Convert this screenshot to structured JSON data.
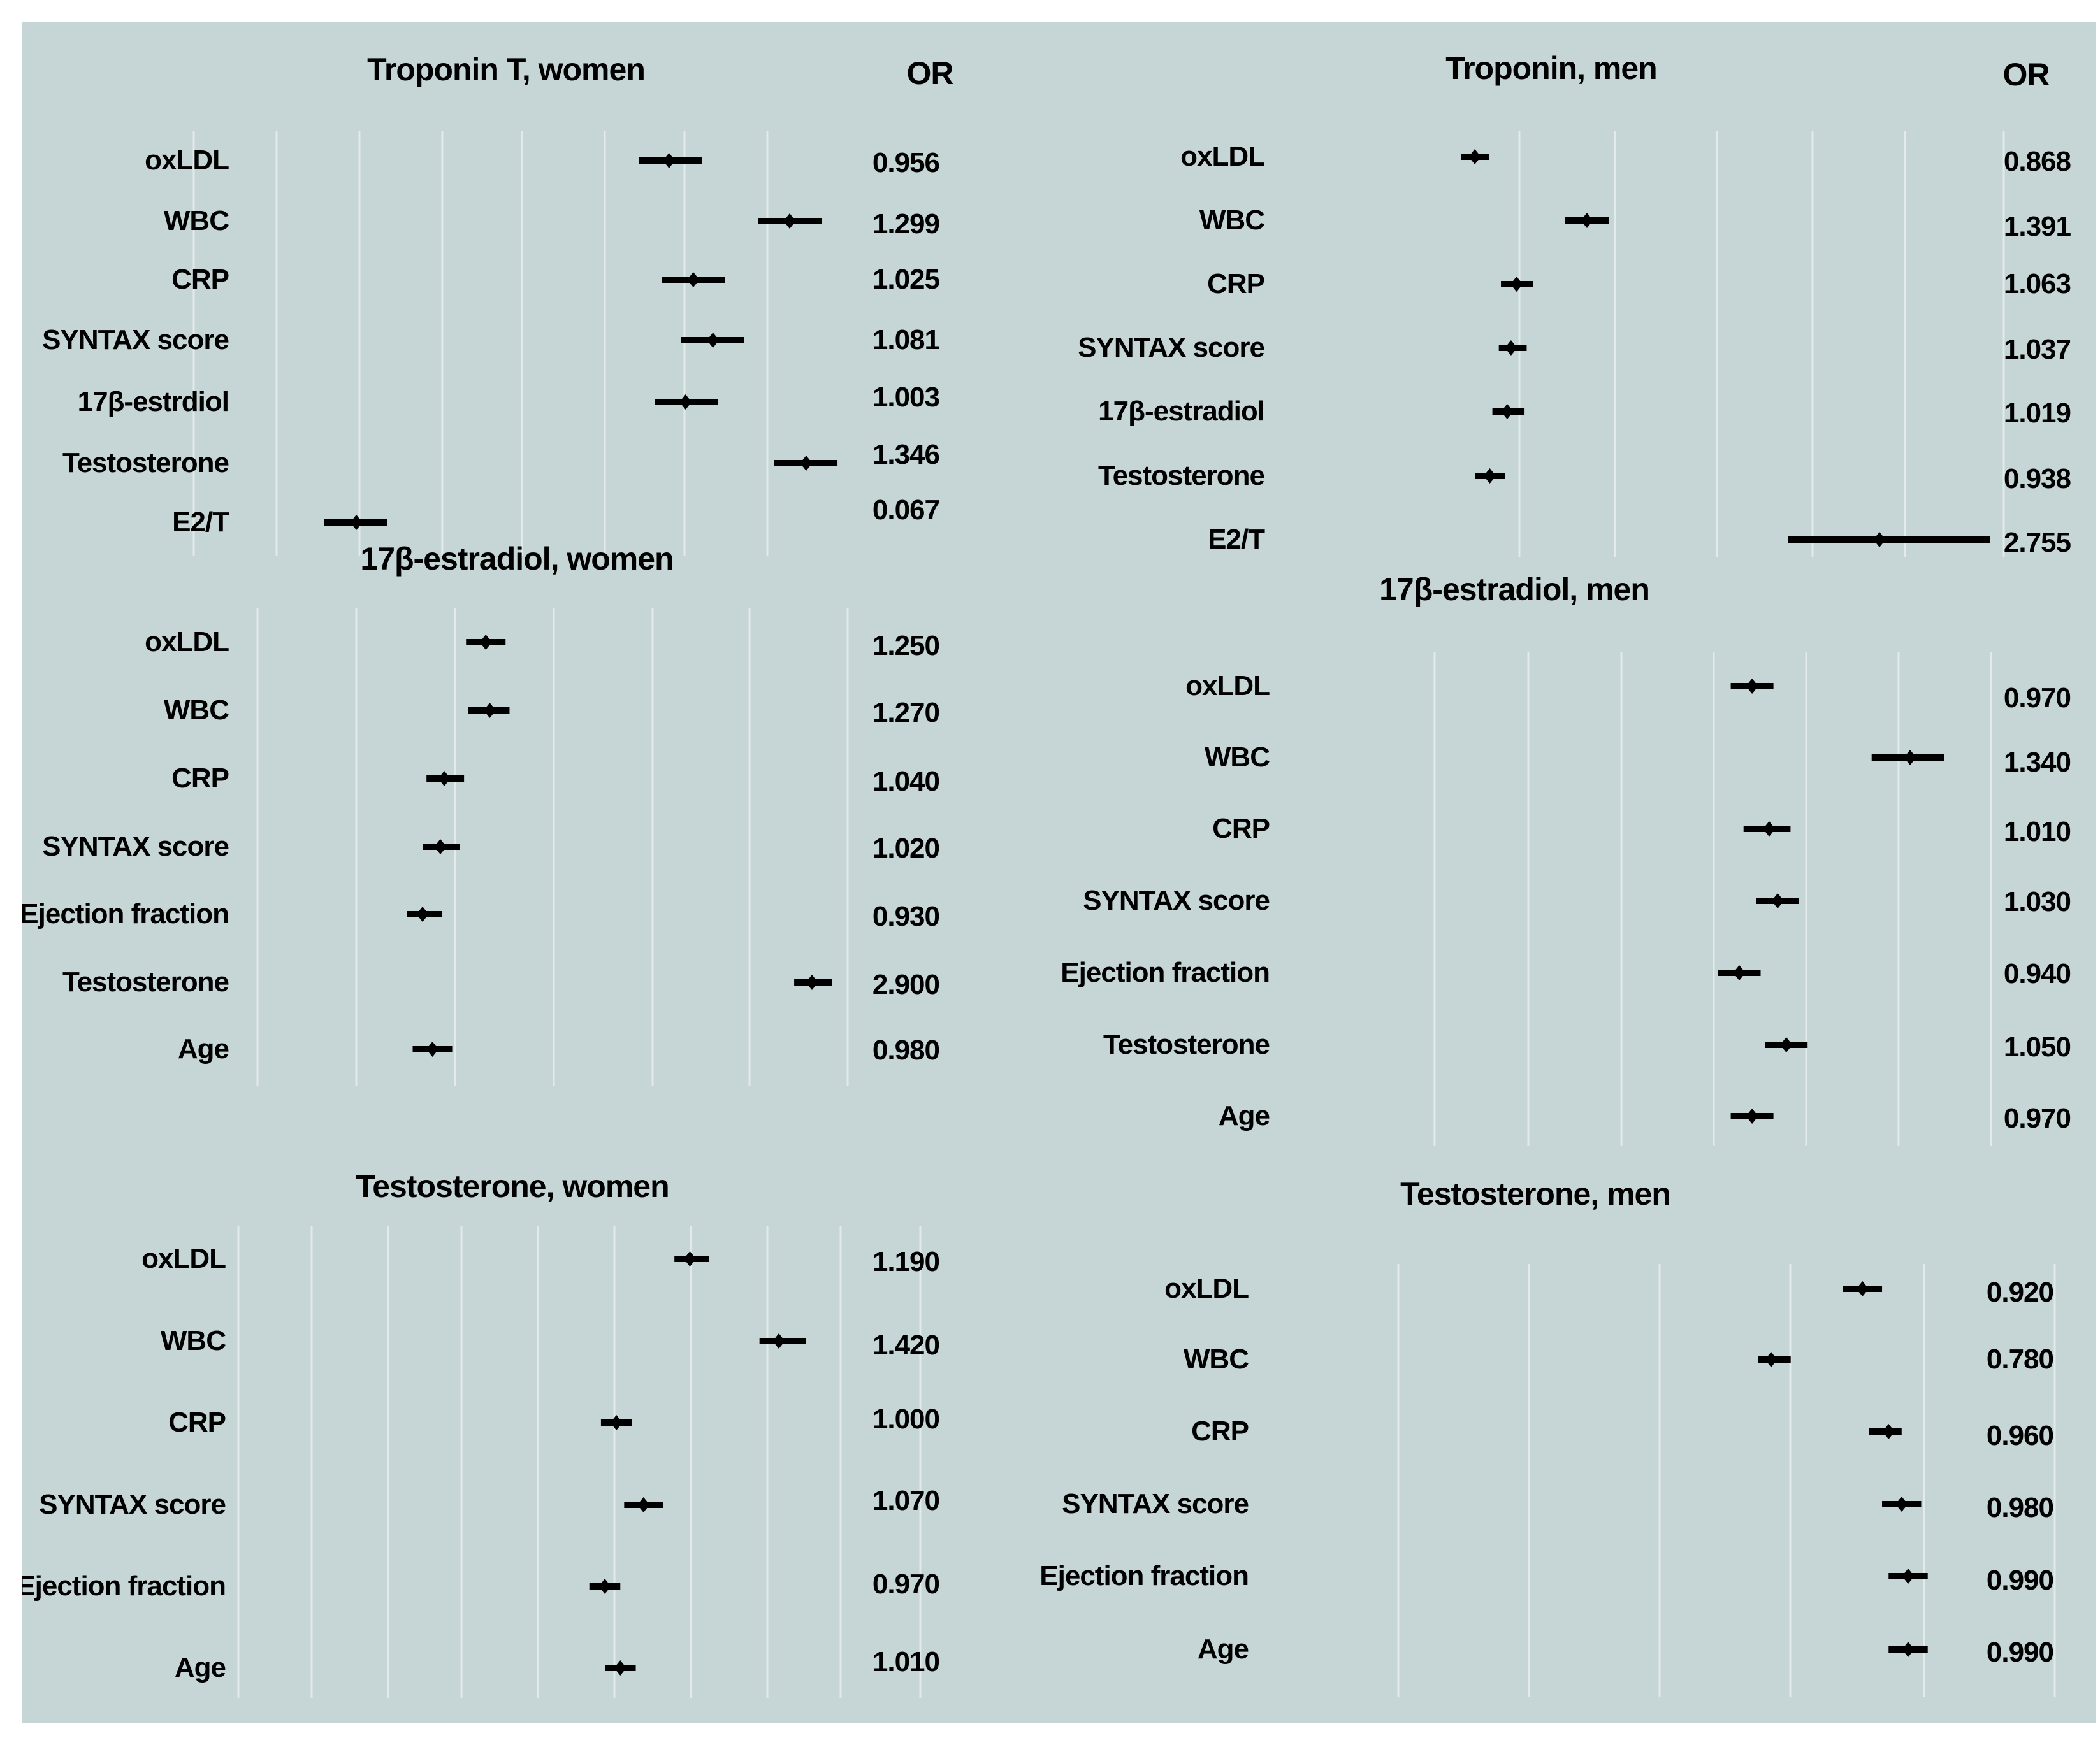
{
  "chart_data": [
    {
      "type": "forest",
      "title": "Troponin T, women",
      "column_header": "OR",
      "rows": [
        {
          "label": "oxLDL",
          "or": 0.956,
          "or_text": "0.956",
          "ci": [
            0.87,
            1.05
          ]
        },
        {
          "label": "WBC",
          "or": 1.299,
          "or_text": "1.299",
          "ci": [
            1.21,
            1.39
          ]
        },
        {
          "label": "CRP",
          "or": 1.025,
          "or_text": "1.025",
          "ci": [
            0.935,
            1.115
          ]
        },
        {
          "label": "SYNTAX score",
          "or": 1.081,
          "or_text": "1.081",
          "ci": [
            0.99,
            1.17
          ]
        },
        {
          "label": "17β-estrdiol",
          "or": 1.003,
          "or_text": "1.003",
          "ci": [
            0.915,
            1.095
          ]
        },
        {
          "label": "Testosterone",
          "or": 1.346,
          "or_text": "1.346",
          "ci": [
            1.255,
            1.435
          ]
        },
        {
          "label": "E2/T",
          "or": 0.067,
          "or_text": "0.067",
          "ci": [
            -0.025,
            0.155
          ]
        }
      ]
    },
    {
      "type": "forest",
      "title": "Troponin, men",
      "column_header": "OR",
      "rows": [
        {
          "label": "oxLDL",
          "or": 0.868,
          "or_text": "0.868",
          "ci": [
            0.805,
            0.935
          ]
        },
        {
          "label": "WBC",
          "or": 1.391,
          "or_text": "1.391",
          "ci": [
            1.29,
            1.495
          ]
        },
        {
          "label": "CRP",
          "or": 1.063,
          "or_text": "1.063",
          "ci": [
            0.99,
            1.14
          ]
        },
        {
          "label": "SYNTAX score",
          "or": 1.037,
          "or_text": "1.037",
          "ci": [
            0.98,
            1.11
          ]
        },
        {
          "label": "17β-estradiol",
          "or": 1.019,
          "or_text": "1.019",
          "ci": [
            0.95,
            1.1
          ]
        },
        {
          "label": "Testosterone",
          "or": 0.938,
          "or_text": "0.938",
          "ci": [
            0.87,
            1.01
          ]
        },
        {
          "label": "E2/T",
          "or": 2.755,
          "or_text": "2.755",
          "ci": [
            2.33,
            3.27
          ]
        }
      ]
    },
    {
      "type": "forest",
      "title": "17β-estradiol, women",
      "rows": [
        {
          "label": "oxLDL",
          "or": 1.25,
          "or_text": "1.250",
          "ci": [
            1.15,
            1.35
          ]
        },
        {
          "label": "WBC",
          "or": 1.27,
          "or_text": "1.270",
          "ci": [
            1.16,
            1.37
          ]
        },
        {
          "label": "CRP",
          "or": 1.04,
          "or_text": "1.040",
          "ci": [
            0.95,
            1.14
          ]
        },
        {
          "label": "SYNTAX score",
          "or": 1.02,
          "or_text": "1.020",
          "ci": [
            0.93,
            1.12
          ]
        },
        {
          "label": "Ejection fraction",
          "or": 0.93,
          "or_text": "0.930",
          "ci": [
            0.85,
            1.03
          ]
        },
        {
          "label": "Testosterone",
          "or": 2.9,
          "or_text": "2.900",
          "ci": [
            2.81,
            3.0
          ]
        },
        {
          "label": "Age",
          "or": 0.98,
          "or_text": "0.980",
          "ci": [
            0.88,
            1.08
          ]
        }
      ]
    },
    {
      "type": "forest",
      "title": "17β-estradiol, men",
      "rows": [
        {
          "label": "oxLDL",
          "or": 0.97,
          "or_text": "0.970",
          "ci": [
            0.92,
            1.02
          ]
        },
        {
          "label": "WBC",
          "or": 1.34,
          "or_text": "1.340",
          "ci": [
            1.25,
            1.42
          ]
        },
        {
          "label": "CRP",
          "or": 1.01,
          "or_text": "1.010",
          "ci": [
            0.95,
            1.06
          ]
        },
        {
          "label": "SYNTAX score",
          "or": 1.03,
          "or_text": "1.030",
          "ci": [
            0.98,
            1.08
          ]
        },
        {
          "label": "Ejection fraction",
          "or": 0.94,
          "or_text": "0.940",
          "ci": [
            0.89,
            0.99
          ]
        },
        {
          "label": "Testosterone",
          "or": 1.05,
          "or_text": "1.050",
          "ci": [
            1.0,
            1.1
          ]
        },
        {
          "label": "Age",
          "or": 0.97,
          "or_text": "0.970",
          "ci": [
            0.92,
            1.02
          ]
        }
      ]
    },
    {
      "type": "forest",
      "title": "Testosterone, women",
      "rows": [
        {
          "label": "oxLDL",
          "or": 1.19,
          "or_text": "1.190",
          "ci": [
            1.15,
            1.24
          ]
        },
        {
          "label": "WBC",
          "or": 1.42,
          "or_text": "1.420",
          "ci": [
            1.37,
            1.49
          ]
        },
        {
          "label": "CRP",
          "or": 1.0,
          "or_text": "1.000",
          "ci": [
            0.96,
            1.04
          ]
        },
        {
          "label": "SYNTAX score",
          "or": 1.07,
          "or_text": "1.070",
          "ci": [
            1.02,
            1.12
          ]
        },
        {
          "label": "Ejection fraction",
          "or": 0.97,
          "or_text": "0.970",
          "ci": [
            0.93,
            1.01
          ]
        },
        {
          "label": "Age",
          "or": 1.01,
          "or_text": "1.010",
          "ci": [
            0.97,
            1.05
          ]
        }
      ]
    },
    {
      "type": "forest",
      "title": "Testosterone, men",
      "rows": [
        {
          "label": "oxLDL",
          "or": 0.92,
          "or_text": "0.920",
          "ci": [
            0.89,
            0.95
          ]
        },
        {
          "label": "WBC",
          "or": 0.78,
          "or_text": "0.780",
          "ci": [
            0.76,
            0.81
          ]
        },
        {
          "label": "CRP",
          "or": 0.96,
          "or_text": "0.960",
          "ci": [
            0.93,
            0.98
          ]
        },
        {
          "label": "SYNTAX score",
          "or": 0.98,
          "or_text": "0.980",
          "ci": [
            0.95,
            1.01
          ]
        },
        {
          "label": "Ejection fraction",
          "or": 0.99,
          "or_text": "0.990",
          "ci": [
            0.96,
            1.02
          ]
        },
        {
          "label": "Age",
          "or": 0.99,
          "or_text": "0.990",
          "ci": [
            0.96,
            1.02
          ]
        }
      ]
    }
  ]
}
